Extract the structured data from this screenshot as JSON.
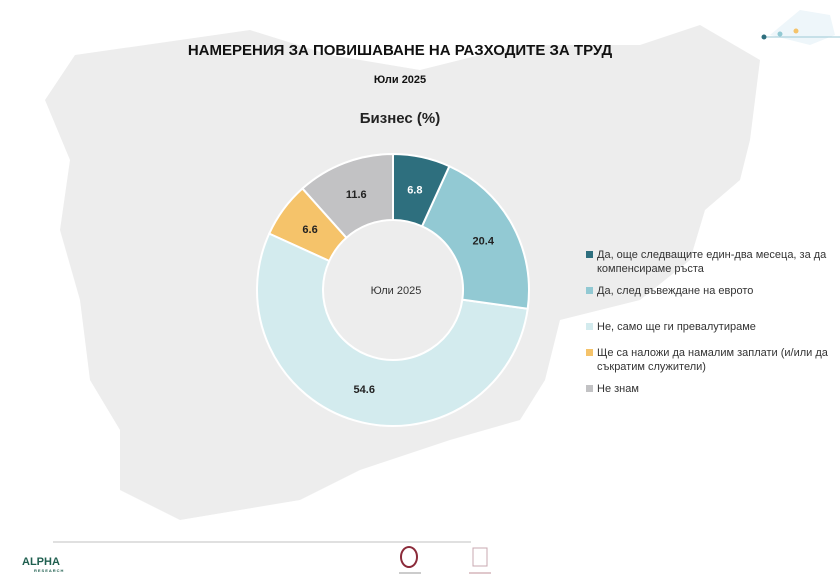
{
  "header": {
    "title": "НАМЕРЕНИЯ ЗА ПОВИШАВАНЕ НА РАЗХОДИТЕ ЗА ТРУД",
    "subtitle": "Юли 2025"
  },
  "chart_data": {
    "type": "pie",
    "donut": true,
    "title": "Бизнес (%)",
    "center_label": "Юли 2025",
    "categories": [
      "Да, още следващите един-два месеца, за да компенсираме ръста",
      "Да, след въвеждане на еврото",
      "Не, само ще ги превалутираме",
      "Ще са наложи да намалим заплати (и/или да съкратим служители)",
      "Не знам"
    ],
    "values": [
      6.8,
      20.4,
      54.6,
      6.6,
      11.6
    ],
    "labels": [
      "6.8",
      "20.4",
      "54.6",
      "6.6",
      "11.6"
    ],
    "colors": [
      "#2e6f7e",
      "#92c9d3",
      "#d3ebee",
      "#f5c36a",
      "#c2c2c4"
    ],
    "legend_position": "right"
  },
  "footer": {
    "logo": "ALPHA RESEARCH"
  }
}
